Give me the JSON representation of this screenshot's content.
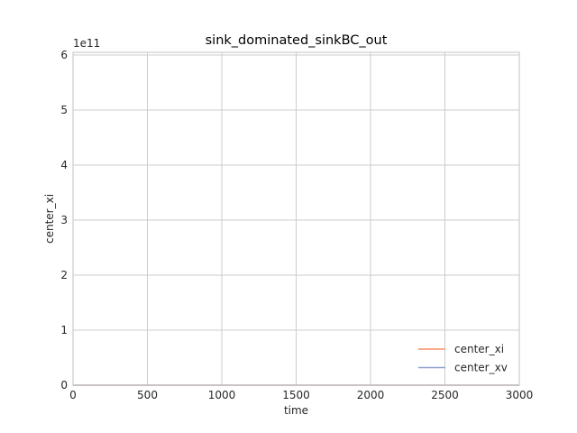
{
  "chart_data": {
    "type": "line",
    "title": "sink_dominated_sinkBC_out",
    "xlabel": "time",
    "ylabel": "center_xi",
    "y_offset_label": "1e11",
    "xlim": [
      0,
      3000
    ],
    "ylim": [
      0,
      6.05
    ],
    "x_ticks": [
      0,
      500,
      1000,
      1500,
      2000,
      2500,
      3000
    ],
    "y_ticks": [
      0,
      1,
      2,
      3,
      4,
      5,
      6
    ],
    "grid": true,
    "legend_position": "lower right",
    "series": [
      {
        "name": "center_xi",
        "color": "#fc8d62",
        "x": [
          0,
          3000
        ],
        "y": [
          0,
          0
        ]
      },
      {
        "name": "center_xv",
        "color": "#8da0cb",
        "x": [
          0,
          3000
        ],
        "y": [
          0,
          0
        ]
      }
    ]
  }
}
